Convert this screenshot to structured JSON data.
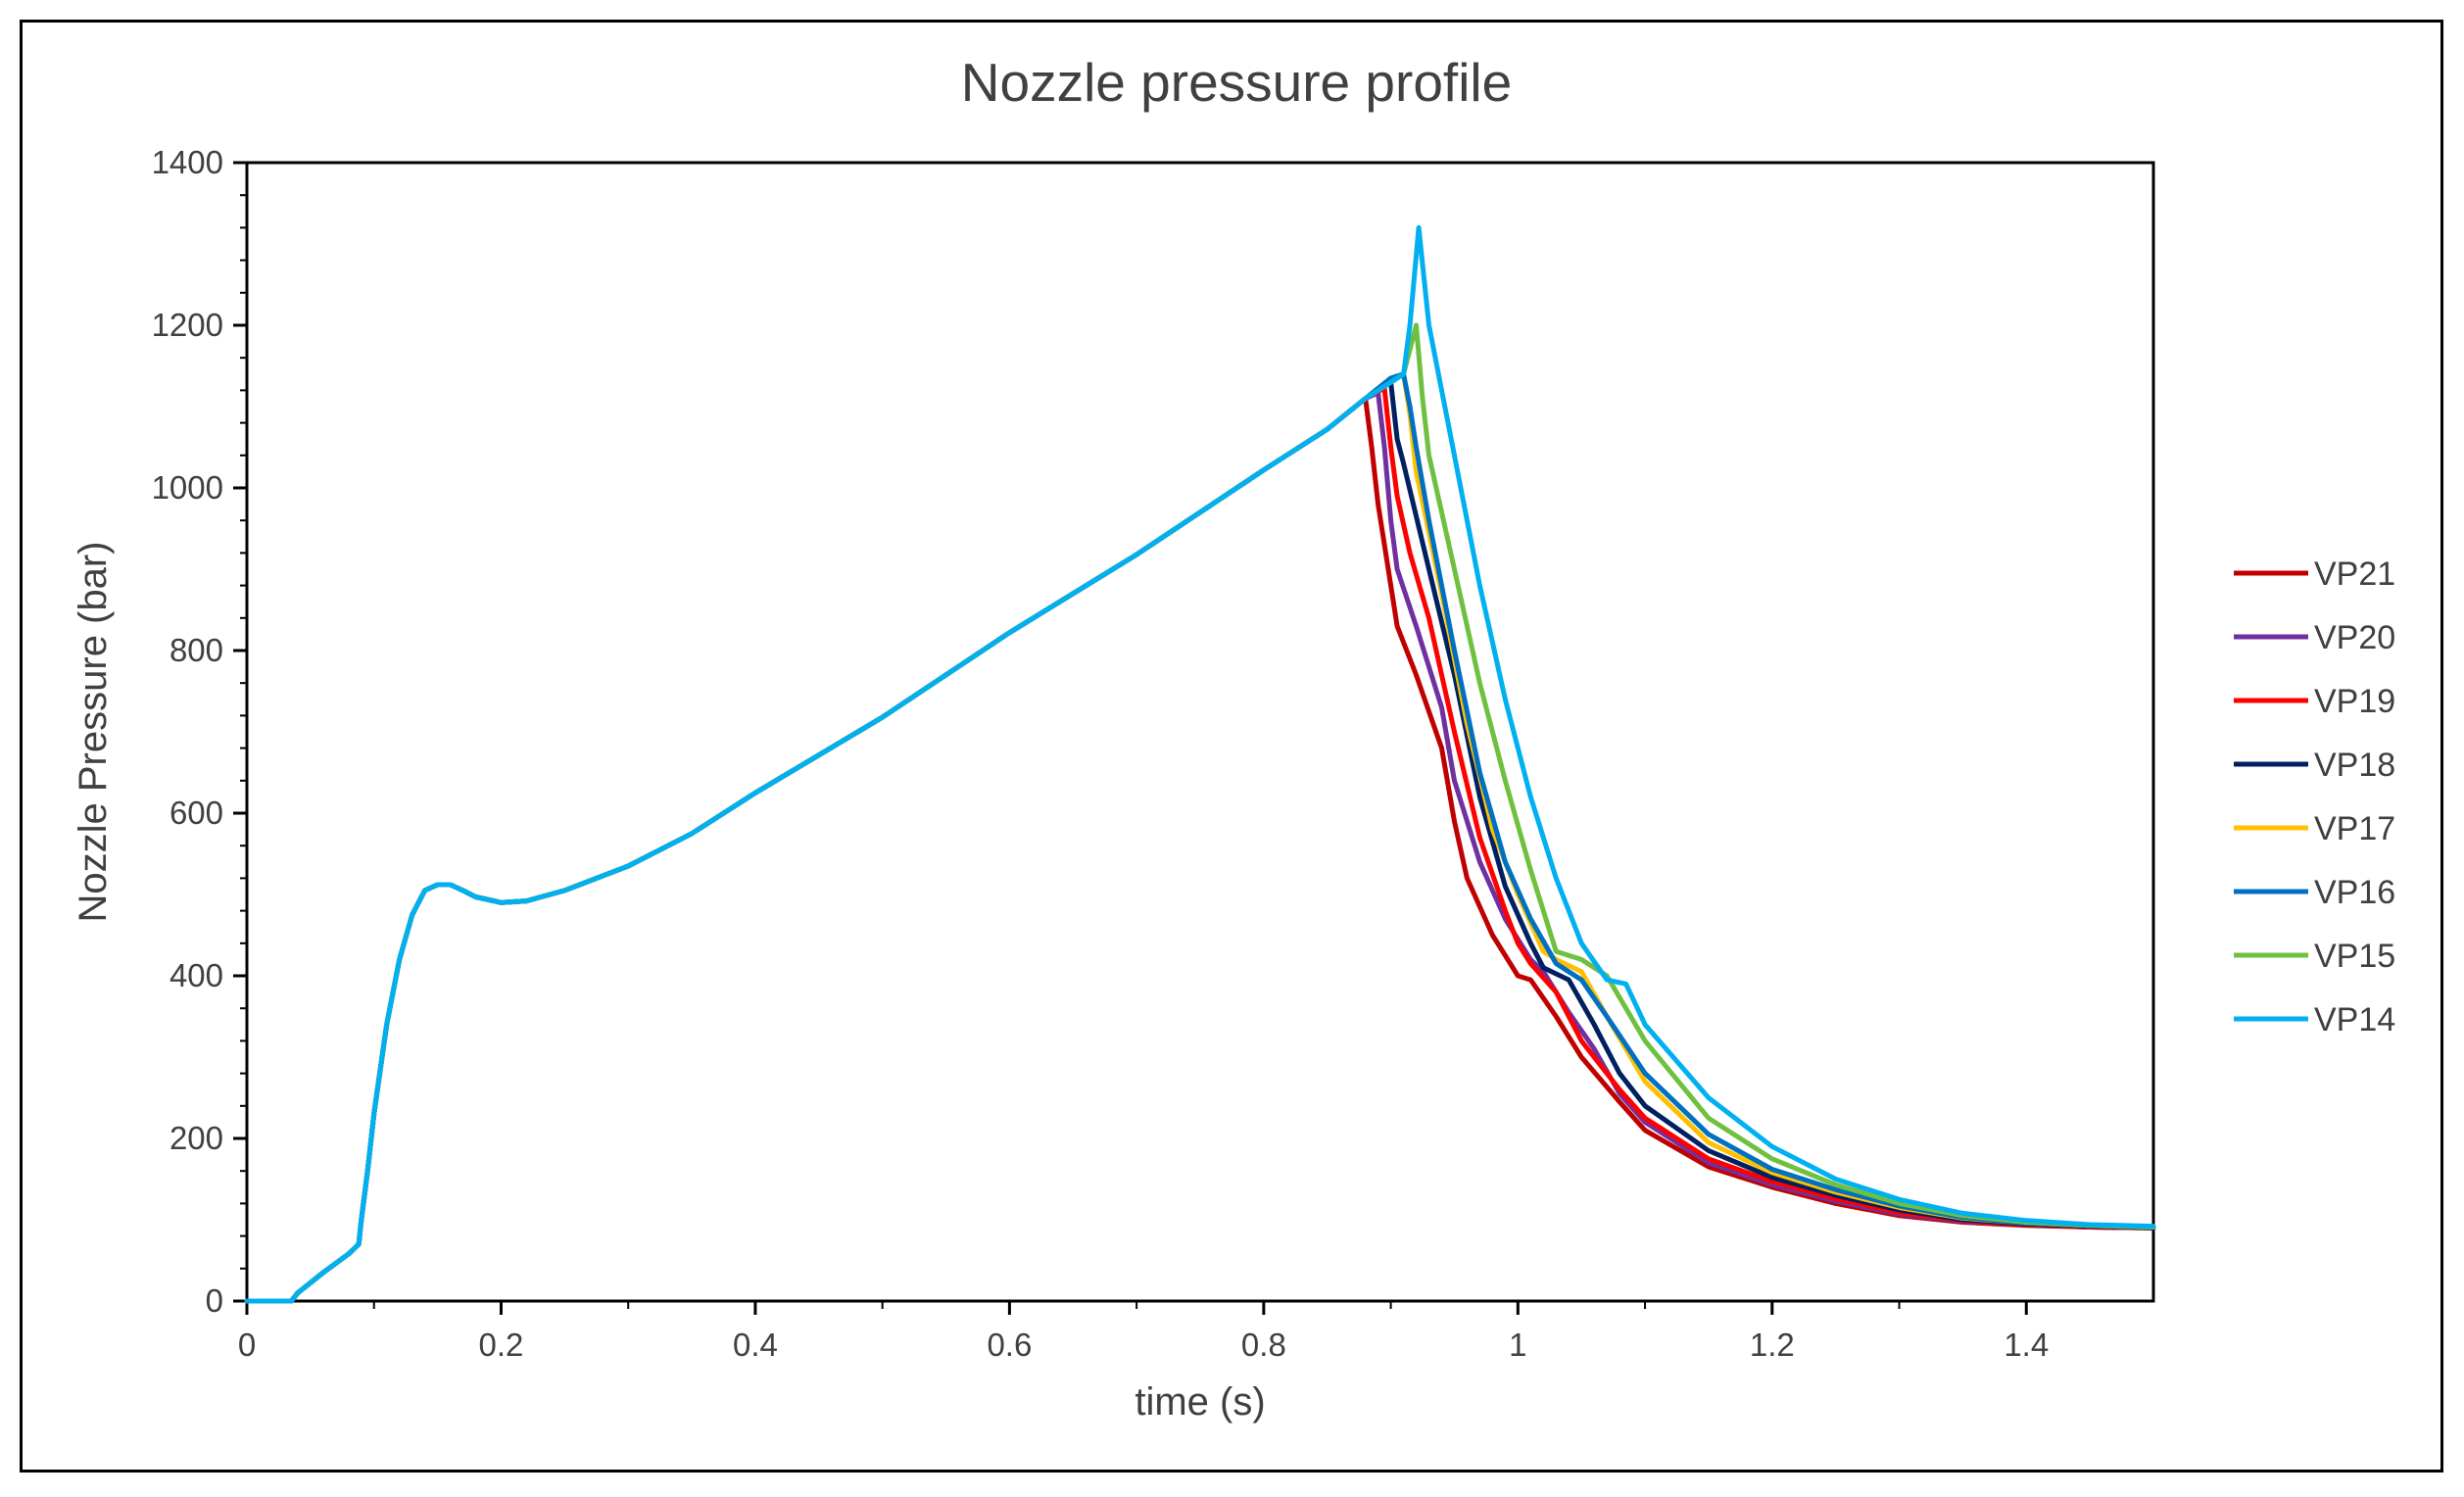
{
  "chart_data": {
    "type": "line",
    "title": "Nozzle pressure profile",
    "xlabel": "time (s)",
    "ylabel": "Nozzle Pressure (bar)",
    "xlim": [
      0,
      1.5
    ],
    "ylim": [
      0,
      1400
    ],
    "x_ticks": [
      0,
      0.2,
      0.4,
      0.6,
      0.8,
      1,
      1.2,
      1.4
    ],
    "x_tick_labels": [
      "0",
      "0.2",
      "0.4",
      "0.6",
      "0.8",
      "1",
      "1.2",
      "1.4"
    ],
    "y_ticks": [
      0,
      200,
      400,
      600,
      800,
      1000,
      1200,
      1400
    ],
    "y_tick_labels": [
      "0",
      "200",
      "400",
      "600",
      "800",
      "1000",
      "1200",
      "1400"
    ],
    "grid": false,
    "legend_position": "right",
    "common_ramp": [
      [
        0,
        0
      ],
      [
        0.035,
        0
      ],
      [
        0.04,
        10
      ],
      [
        0.06,
        35
      ],
      [
        0.08,
        58
      ],
      [
        0.088,
        70
      ],
      [
        0.09,
        100
      ],
      [
        0.095,
        160
      ],
      [
        0.1,
        230
      ],
      [
        0.11,
        340
      ],
      [
        0.12,
        420
      ],
      [
        0.13,
        475
      ],
      [
        0.14,
        505
      ],
      [
        0.15,
        512
      ],
      [
        0.16,
        512
      ],
      [
        0.17,
        505
      ],
      [
        0.18,
        497
      ],
      [
        0.2,
        490
      ],
      [
        0.22,
        492
      ],
      [
        0.25,
        505
      ],
      [
        0.3,
        535
      ],
      [
        0.35,
        575
      ],
      [
        0.4,
        625
      ],
      [
        0.5,
        718
      ],
      [
        0.6,
        822
      ],
      [
        0.7,
        918
      ],
      [
        0.8,
        1022
      ],
      [
        0.85,
        1072
      ]
    ],
    "series": [
      {
        "name": "VP21",
        "color": "#C00000",
        "values": [
          [
            0.88,
            1110
          ],
          [
            0.885,
            1050
          ],
          [
            0.89,
            980
          ],
          [
            0.9,
            880
          ],
          [
            0.905,
            830
          ],
          [
            0.92,
            770
          ],
          [
            0.94,
            680
          ],
          [
            0.95,
            590
          ],
          [
            0.96,
            520
          ],
          [
            0.98,
            450
          ],
          [
            1.0,
            400
          ],
          [
            1.01,
            395
          ],
          [
            1.03,
            350
          ],
          [
            1.05,
            300
          ],
          [
            1.08,
            245
          ],
          [
            1.1,
            210
          ],
          [
            1.15,
            165
          ],
          [
            1.2,
            140
          ],
          [
            1.25,
            120
          ],
          [
            1.3,
            105
          ],
          [
            1.35,
            97
          ],
          [
            1.4,
            93
          ],
          [
            1.45,
            91
          ],
          [
            1.5,
            90
          ]
        ]
      },
      {
        "name": "VP20",
        "color": "#7030A0",
        "values": [
          [
            0.88,
            1110
          ],
          [
            0.89,
            1117
          ],
          [
            0.895,
            1050
          ],
          [
            0.9,
            960
          ],
          [
            0.905,
            900
          ],
          [
            0.92,
            830
          ],
          [
            0.94,
            730
          ],
          [
            0.95,
            640
          ],
          [
            0.97,
            540
          ],
          [
            0.99,
            470
          ],
          [
            1.01,
            420
          ],
          [
            1.02,
            405
          ],
          [
            1.04,
            355
          ],
          [
            1.06,
            310
          ],
          [
            1.08,
            255
          ],
          [
            1.1,
            220
          ],
          [
            1.15,
            170
          ],
          [
            1.2,
            143
          ],
          [
            1.25,
            123
          ],
          [
            1.3,
            107
          ],
          [
            1.35,
            98
          ],
          [
            1.4,
            94
          ],
          [
            1.45,
            91
          ],
          [
            1.5,
            90
          ]
        ]
      },
      {
        "name": "VP19",
        "color": "#FF0000",
        "values": [
          [
            0.88,
            1110
          ],
          [
            0.89,
            1119
          ],
          [
            0.895,
            1122
          ],
          [
            0.9,
            1050
          ],
          [
            0.905,
            990
          ],
          [
            0.915,
            920
          ],
          [
            0.93,
            840
          ],
          [
            0.95,
            700
          ],
          [
            0.97,
            570
          ],
          [
            0.99,
            480
          ],
          [
            1.0,
            440
          ],
          [
            1.01,
            415
          ],
          [
            1.03,
            380
          ],
          [
            1.05,
            320
          ],
          [
            1.08,
            260
          ],
          [
            1.1,
            225
          ],
          [
            1.15,
            175
          ],
          [
            1.2,
            147
          ],
          [
            1.25,
            126
          ],
          [
            1.3,
            109
          ],
          [
            1.35,
            99
          ],
          [
            1.4,
            94
          ],
          [
            1.45,
            91
          ],
          [
            1.5,
            90
          ]
        ]
      },
      {
        "name": "VP18",
        "color": "#002060",
        "values": [
          [
            0.88,
            1110
          ],
          [
            0.895,
            1125
          ],
          [
            0.9,
            1130
          ],
          [
            0.905,
            1060
          ],
          [
            0.91,
            1030
          ],
          [
            0.93,
            900
          ],
          [
            0.95,
            770
          ],
          [
            0.97,
            620
          ],
          [
            0.99,
            510
          ],
          [
            1.01,
            440
          ],
          [
            1.02,
            410
          ],
          [
            1.04,
            395
          ],
          [
            1.06,
            340
          ],
          [
            1.08,
            280
          ],
          [
            1.1,
            240
          ],
          [
            1.15,
            185
          ],
          [
            1.2,
            152
          ],
          [
            1.25,
            130
          ],
          [
            1.3,
            112
          ],
          [
            1.35,
            100
          ],
          [
            1.4,
            95
          ],
          [
            1.45,
            92
          ],
          [
            1.5,
            90
          ]
        ]
      },
      {
        "name": "VP17",
        "color": "#FFC000",
        "values": [
          [
            0.88,
            1110
          ],
          [
            0.9,
            1130
          ],
          [
            0.91,
            1140
          ],
          [
            0.915,
            1090
          ],
          [
            0.92,
            1020
          ],
          [
            0.94,
            870
          ],
          [
            0.96,
            710
          ],
          [
            0.98,
            580
          ],
          [
            1.0,
            500
          ],
          [
            1.02,
            430
          ],
          [
            1.03,
            420
          ],
          [
            1.05,
            405
          ],
          [
            1.07,
            350
          ],
          [
            1.1,
            270
          ],
          [
            1.15,
            195
          ],
          [
            1.2,
            158
          ],
          [
            1.25,
            134
          ],
          [
            1.3,
            115
          ],
          [
            1.35,
            102
          ],
          [
            1.4,
            96
          ],
          [
            1.45,
            93
          ],
          [
            1.5,
            91
          ]
        ]
      },
      {
        "name": "VP16",
        "color": "#0070C0",
        "values": [
          [
            0.88,
            1110
          ],
          [
            0.9,
            1135
          ],
          [
            0.91,
            1140
          ],
          [
            0.915,
            1100
          ],
          [
            0.92,
            1050
          ],
          [
            0.93,
            960
          ],
          [
            0.95,
            800
          ],
          [
            0.97,
            650
          ],
          [
            0.99,
            540
          ],
          [
            1.01,
            470
          ],
          [
            1.03,
            415
          ],
          [
            1.05,
            395
          ],
          [
            1.07,
            350
          ],
          [
            1.1,
            280
          ],
          [
            1.15,
            205
          ],
          [
            1.2,
            162
          ],
          [
            1.25,
            137
          ],
          [
            1.3,
            117
          ],
          [
            1.35,
            103
          ],
          [
            1.4,
            96
          ],
          [
            1.45,
            93
          ],
          [
            1.5,
            91
          ]
        ]
      },
      {
        "name": "VP15",
        "color": "#70C040",
        "values": [
          [
            0.88,
            1110
          ],
          [
            0.9,
            1130
          ],
          [
            0.91,
            1140
          ],
          [
            0.92,
            1200
          ],
          [
            0.925,
            1110
          ],
          [
            0.93,
            1040
          ],
          [
            0.95,
            900
          ],
          [
            0.97,
            760
          ],
          [
            0.99,
            640
          ],
          [
            1.01,
            530
          ],
          [
            1.03,
            430
          ],
          [
            1.05,
            420
          ],
          [
            1.07,
            400
          ],
          [
            1.1,
            320
          ],
          [
            1.15,
            225
          ],
          [
            1.2,
            175
          ],
          [
            1.25,
            143
          ],
          [
            1.3,
            120
          ],
          [
            1.35,
            105
          ],
          [
            1.4,
            97
          ],
          [
            1.45,
            93
          ],
          [
            1.5,
            91
          ]
        ]
      },
      {
        "name": "VP14",
        "color": "#00B0F0",
        "values": [
          [
            0.88,
            1110
          ],
          [
            0.9,
            1130
          ],
          [
            0.91,
            1140
          ],
          [
            0.915,
            1200
          ],
          [
            0.922,
            1320
          ],
          [
            0.93,
            1200
          ],
          [
            0.95,
            1040
          ],
          [
            0.97,
            880
          ],
          [
            0.99,
            740
          ],
          [
            1.01,
            620
          ],
          [
            1.03,
            520
          ],
          [
            1.05,
            440
          ],
          [
            1.07,
            395
          ],
          [
            1.085,
            390
          ],
          [
            1.1,
            340
          ],
          [
            1.15,
            250
          ],
          [
            1.2,
            190
          ],
          [
            1.25,
            150
          ],
          [
            1.3,
            125
          ],
          [
            1.35,
            108
          ],
          [
            1.4,
            99
          ],
          [
            1.45,
            94
          ],
          [
            1.5,
            92
          ]
        ]
      }
    ]
  }
}
